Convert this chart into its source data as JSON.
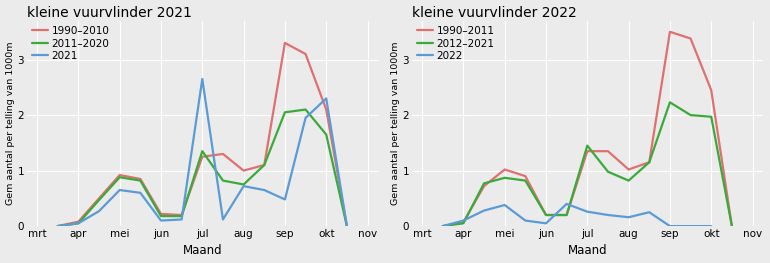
{
  "chart1": {
    "title": "kleine vuurvlinder 2021",
    "series": [
      {
        "label": "1990–2010",
        "color": "#E07070",
        "x": [
          3.5,
          4.0,
          4.5,
          5.0,
          5.5,
          6.0,
          6.5,
          7.0,
          7.5,
          8.0,
          8.5,
          9.0,
          9.5,
          10.0,
          10.5
        ],
        "y": [
          0.0,
          0.08,
          0.5,
          0.92,
          0.85,
          0.22,
          0.2,
          1.25,
          1.3,
          1.0,
          1.1,
          3.3,
          3.1,
          2.1,
          0.0
        ]
      },
      {
        "label": "2011–2020",
        "color": "#3AAA3A",
        "x": [
          3.5,
          4.0,
          4.5,
          5.0,
          5.5,
          6.0,
          6.5,
          7.0,
          7.5,
          8.0,
          8.5,
          9.0,
          9.5,
          10.0,
          10.5
        ],
        "y": [
          0.0,
          0.05,
          0.47,
          0.88,
          0.82,
          0.18,
          0.18,
          1.35,
          0.82,
          0.75,
          1.1,
          2.05,
          2.1,
          1.65,
          0.0
        ]
      },
      {
        "label": "2021",
        "color": "#5B9BD5",
        "x": [
          3.5,
          4.0,
          4.5,
          5.0,
          5.5,
          6.0,
          6.5,
          7.0,
          7.5,
          8.0,
          8.5,
          9.0,
          9.5,
          10.0,
          10.5
        ],
        "y": [
          0.0,
          0.05,
          0.27,
          0.65,
          0.6,
          0.1,
          0.12,
          2.65,
          0.12,
          0.72,
          0.65,
          0.48,
          1.95,
          2.3,
          0.0
        ]
      }
    ],
    "ylabel": "Gem aantal per telling van 1000m",
    "xlabel": "Maand",
    "ylim": [
      0,
      3.7
    ],
    "yticks": [
      0,
      1,
      2,
      3
    ],
    "xticks": [
      3,
      4,
      5,
      6,
      7,
      8,
      9,
      10,
      11
    ],
    "xticklabels": [
      "mrt",
      "apr",
      "mei",
      "jun",
      "jul",
      "aug",
      "sep",
      "okt",
      "nov"
    ],
    "xlim": [
      2.75,
      11.25
    ]
  },
  "chart2": {
    "title": "kleine vuurvlinder 2022",
    "series": [
      {
        "label": "1990–2011",
        "color": "#E07070",
        "x": [
          3.5,
          4.0,
          4.5,
          5.0,
          5.5,
          6.0,
          6.5,
          7.0,
          7.5,
          8.0,
          8.5,
          9.0,
          9.5,
          10.0,
          10.5
        ],
        "y": [
          0.0,
          0.07,
          0.72,
          1.02,
          0.9,
          0.2,
          0.2,
          1.35,
          1.35,
          1.02,
          1.15,
          3.5,
          3.38,
          2.45,
          0.0
        ]
      },
      {
        "label": "2012–2021",
        "color": "#3AAA3A",
        "x": [
          3.5,
          4.0,
          4.5,
          5.0,
          5.5,
          6.0,
          6.5,
          7.0,
          7.5,
          8.0,
          8.5,
          9.0,
          9.5,
          10.0,
          10.5
        ],
        "y": [
          0.0,
          0.05,
          0.77,
          0.87,
          0.82,
          0.2,
          0.2,
          1.45,
          0.98,
          0.82,
          1.15,
          2.23,
          2.0,
          1.97,
          0.0
        ]
      },
      {
        "label": "2022",
        "color": "#5B9BD5",
        "x": [
          3.5,
          4.0,
          4.5,
          5.0,
          5.5,
          6.0,
          6.5,
          7.0,
          7.5,
          8.0,
          8.5,
          9.0,
          9.5,
          10.0
        ],
        "y": [
          0.0,
          0.1,
          0.28,
          0.38,
          0.1,
          0.05,
          0.4,
          0.26,
          0.2,
          0.16,
          0.25,
          0.0,
          0.0,
          0.0
        ]
      }
    ],
    "ylabel": "Gem aantal per telling van 1000m",
    "xlabel": "Maand",
    "ylim": [
      0,
      3.7
    ],
    "yticks": [
      0,
      1,
      2,
      3
    ],
    "xticks": [
      3,
      4,
      5,
      6,
      7,
      8,
      9,
      10,
      11
    ],
    "xticklabels": [
      "mrt",
      "apr",
      "mei",
      "jun",
      "jul",
      "aug",
      "sep",
      "okt",
      "nov"
    ],
    "xlim": [
      2.75,
      11.25
    ]
  },
  "bg_color": "#ebebeb",
  "grid_color": "#ffffff",
  "linewidth": 1.6
}
